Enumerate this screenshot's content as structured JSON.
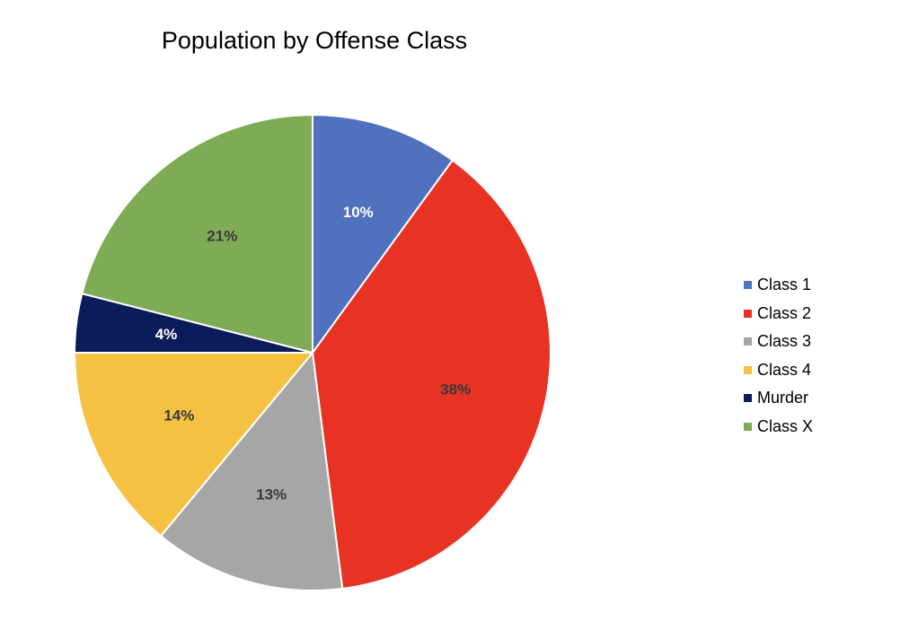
{
  "chart_data": {
    "type": "pie",
    "title": "Population by Offense Class",
    "categories": [
      "Class 1",
      "Class 2",
      "Class 3",
      "Class 4",
      "Murder",
      "Class X"
    ],
    "values": [
      10,
      38,
      13,
      14,
      4,
      21
    ],
    "labels": [
      "10%",
      "38%",
      "13%",
      "14%",
      "4%",
      "21%"
    ],
    "unit": "%",
    "colors": [
      "#4F71BE",
      "#E83324",
      "#A6A6A6",
      "#F4C142",
      "#0B1C5A",
      "#7FAB57"
    ],
    "label_colors": [
      "#FFFFFF",
      "#3A3A3A",
      "#3A3A3A",
      "#3A3A3A",
      "#FFFFFF",
      "#3A3A3A"
    ],
    "start": "12 o'clock, clockwise",
    "legend_position": "right"
  }
}
